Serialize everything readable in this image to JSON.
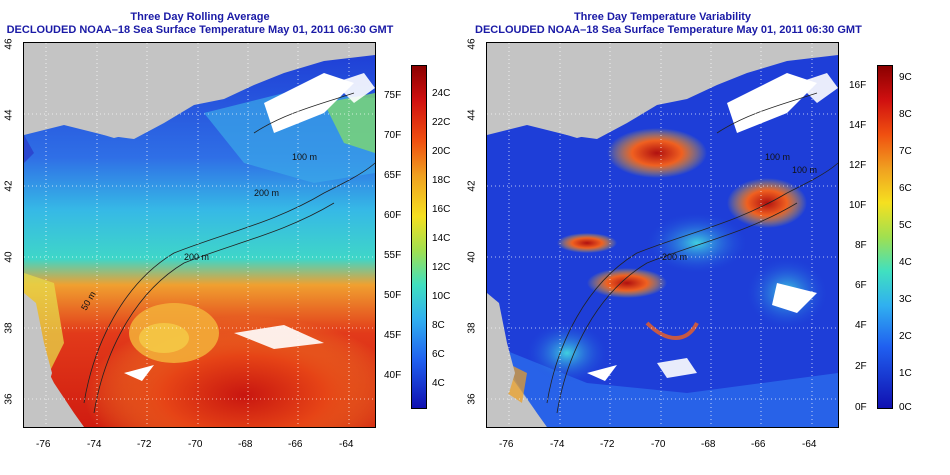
{
  "colors": {
    "land": "#c4c4c4",
    "cloud": "#ffffff",
    "title": "#1a1aa6"
  },
  "panels": [
    {
      "id": "avg",
      "title_line1": "Three Day Rolling Average",
      "title_line2": "DECLOUDED NOAA–18 Sea Surface Temperature May 01, 2011 06:30 GMT",
      "contour_labels": [
        "100 m",
        "200 m",
        "200 m",
        "50 m"
      ],
      "colorbar": {
        "palette": "sst",
        "fahrenheit_labels": [
          "75F",
          "70F",
          "65F",
          "60F",
          "55F",
          "50F",
          "45F",
          "40F"
        ],
        "celsius_labels": [
          "24C",
          "22C",
          "20C",
          "18C",
          "16C",
          "14C",
          "12C",
          "10C",
          "8C",
          "6C",
          "4C"
        ]
      }
    },
    {
      "id": "var",
      "title_line1": "Three Day Temperature Variability",
      "title_line2": "DECLOUDED NOAA–18 Sea Surface Temperature May 01, 2011 06:30 GMT",
      "contour_labels": [
        "100 m",
        "100 m",
        "200 m"
      ],
      "colorbar": {
        "palette": "var",
        "fahrenheit_labels": [
          "16F",
          "14F",
          "12F",
          "10F",
          "8F",
          "6F",
          "4F",
          "2F",
          "0F"
        ],
        "celsius_labels": [
          "9C",
          "8C",
          "7C",
          "6C",
          "5C",
          "4C",
          "3C",
          "2C",
          "1C",
          "0C"
        ]
      }
    }
  ],
  "axes": {
    "lon_labels": [
      "-76",
      "-74",
      "-72",
      "-70",
      "-68",
      "-66",
      "-64"
    ],
    "lat_labels": [
      "46",
      "44",
      "42",
      "40",
      "38",
      "36"
    ]
  }
}
